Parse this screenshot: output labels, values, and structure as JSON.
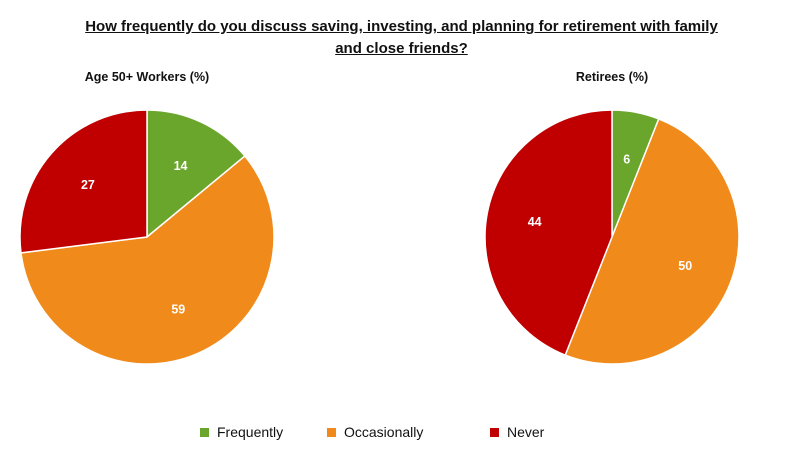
{
  "title_line1": "How frequently do you discuss saving, investing, and planning for retirement with family",
  "title_line2": "and close friends?",
  "chart_data": [
    {
      "type": "pie",
      "title": "Age 50+ Workers (%)",
      "categories": [
        "Frequently",
        "Occasionally",
        "Never"
      ],
      "values": [
        14,
        59,
        27
      ],
      "colors": [
        "#6aa52c",
        "#f08a1a",
        "#c00000"
      ]
    },
    {
      "type": "pie",
      "title": "Retirees (%)",
      "categories": [
        "Frequently",
        "Occasionally",
        "Never"
      ],
      "values": [
        6,
        50,
        44
      ],
      "colors": [
        "#6aa52c",
        "#f08a1a",
        "#c00000"
      ]
    }
  ],
  "legend": [
    {
      "label": "Frequently",
      "color": "#6aa52c"
    },
    {
      "label": "Occasionally",
      "color": "#f08a1a"
    },
    {
      "label": "Never",
      "color": "#c00000"
    }
  ]
}
